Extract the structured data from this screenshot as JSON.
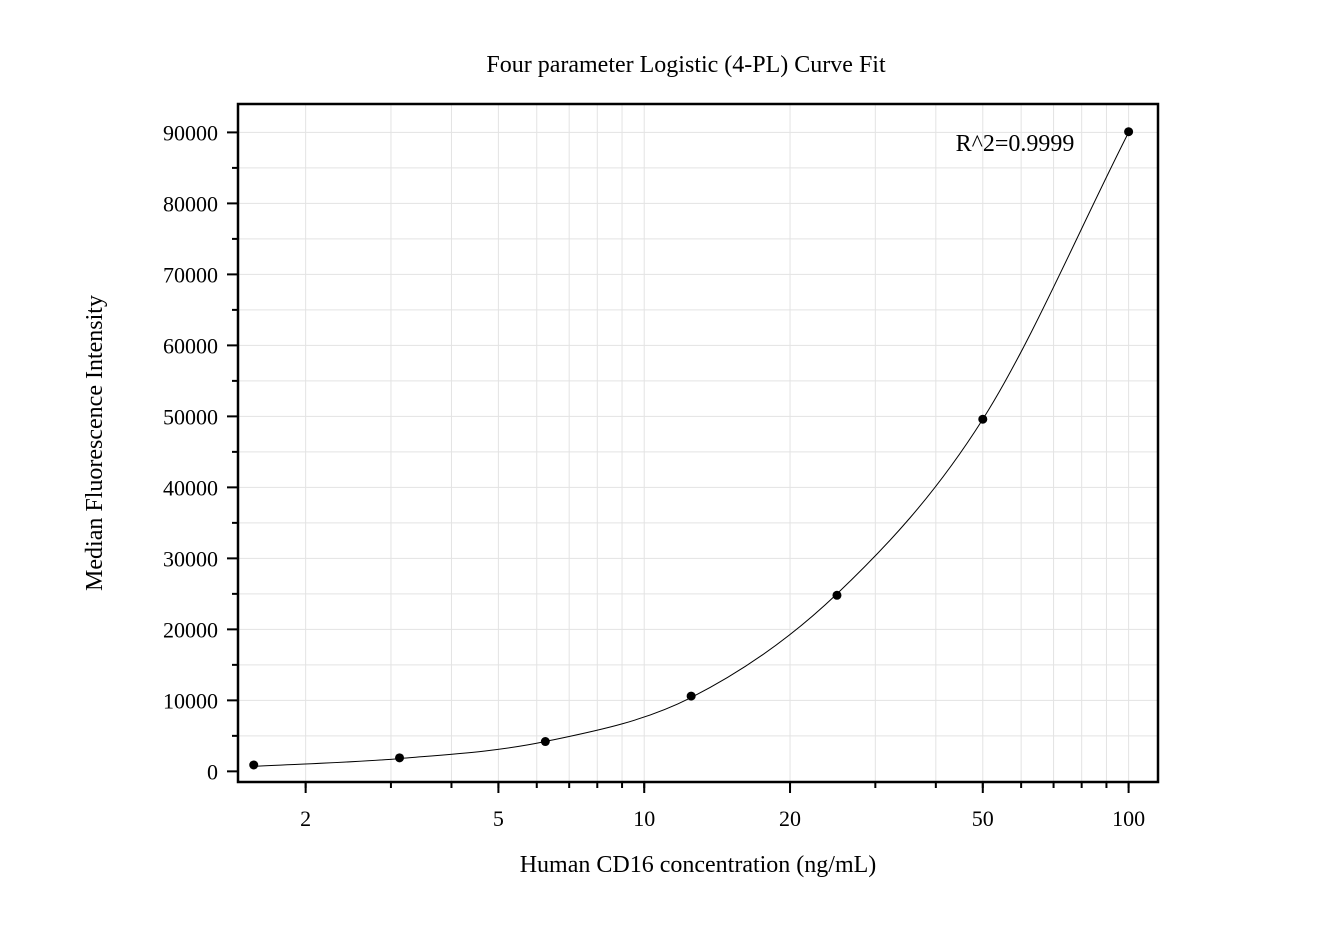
{
  "chart_data": {
    "type": "scatter",
    "title": "Four parameter Logistic (4-PL) Curve Fit",
    "xlabel": "Human CD16 concentration (ng/mL)",
    "ylabel": "Median Fluorescence Intensity",
    "x_scale": "log",
    "xlim": [
      1.45,
      115
    ],
    "ylim": [
      -1500,
      94000
    ],
    "x_ticks": [
      2,
      5,
      10,
      20,
      50,
      100
    ],
    "x_tick_labels": [
      "2",
      "5",
      "10",
      "20",
      "50",
      "100"
    ],
    "y_ticks": [
      0,
      10000,
      20000,
      30000,
      40000,
      50000,
      60000,
      70000,
      80000,
      90000
    ],
    "y_tick_labels": [
      "0",
      "10000",
      "20000",
      "30000",
      "40000",
      "50000",
      "60000",
      "70000",
      "80000",
      "90000"
    ],
    "grid": true,
    "points": {
      "x": [
        1.5625,
        3.125,
        6.25,
        12.5,
        25,
        50,
        100
      ],
      "y": [
        900,
        1900,
        4200,
        10600,
        24800,
        49600,
        90100
      ]
    },
    "fit_curve": {
      "x": [
        1.5625,
        3.125,
        6.25,
        12.5,
        25,
        50,
        100
      ],
      "y": [
        700,
        1800,
        4200,
        10400,
        25000,
        49600,
        90000
      ]
    },
    "annotation": "R^2=0.9999"
  }
}
